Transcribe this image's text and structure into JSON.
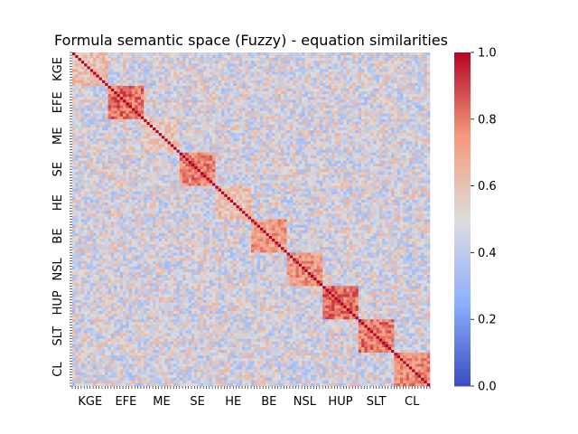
{
  "chart_data": {
    "type": "heatmap",
    "title": "Formula semantic space (Fuzzy) - equation similarities",
    "xlabel": "",
    "ylabel": "",
    "groups": [
      "KGE",
      "EFE",
      "ME",
      "SE",
      "HE",
      "BE",
      "NSL",
      "HUP",
      "SLT",
      "CL"
    ],
    "group_sizes": [
      12,
      12,
      12,
      12,
      12,
      12,
      12,
      12,
      12,
      12
    ],
    "colormap": "coolwarm",
    "vmin": 0.0,
    "vmax": 1.0,
    "diagonal_value": 1.0,
    "typical_within_group": [
      0.62,
      0.82,
      0.58,
      0.78,
      0.62,
      0.72,
      0.74,
      0.82,
      0.8,
      0.76
    ],
    "typical_between_groups": 0.48,
    "colorbar_ticks": [
      "0.0",
      "0.2",
      "0.4",
      "0.6",
      "0.8",
      "1.0"
    ],
    "grid": false,
    "legend": "colorbar-right"
  },
  "colors": {
    "low": "#3b4cc0",
    "mid": "#dddddd",
    "high": "#b40426"
  }
}
